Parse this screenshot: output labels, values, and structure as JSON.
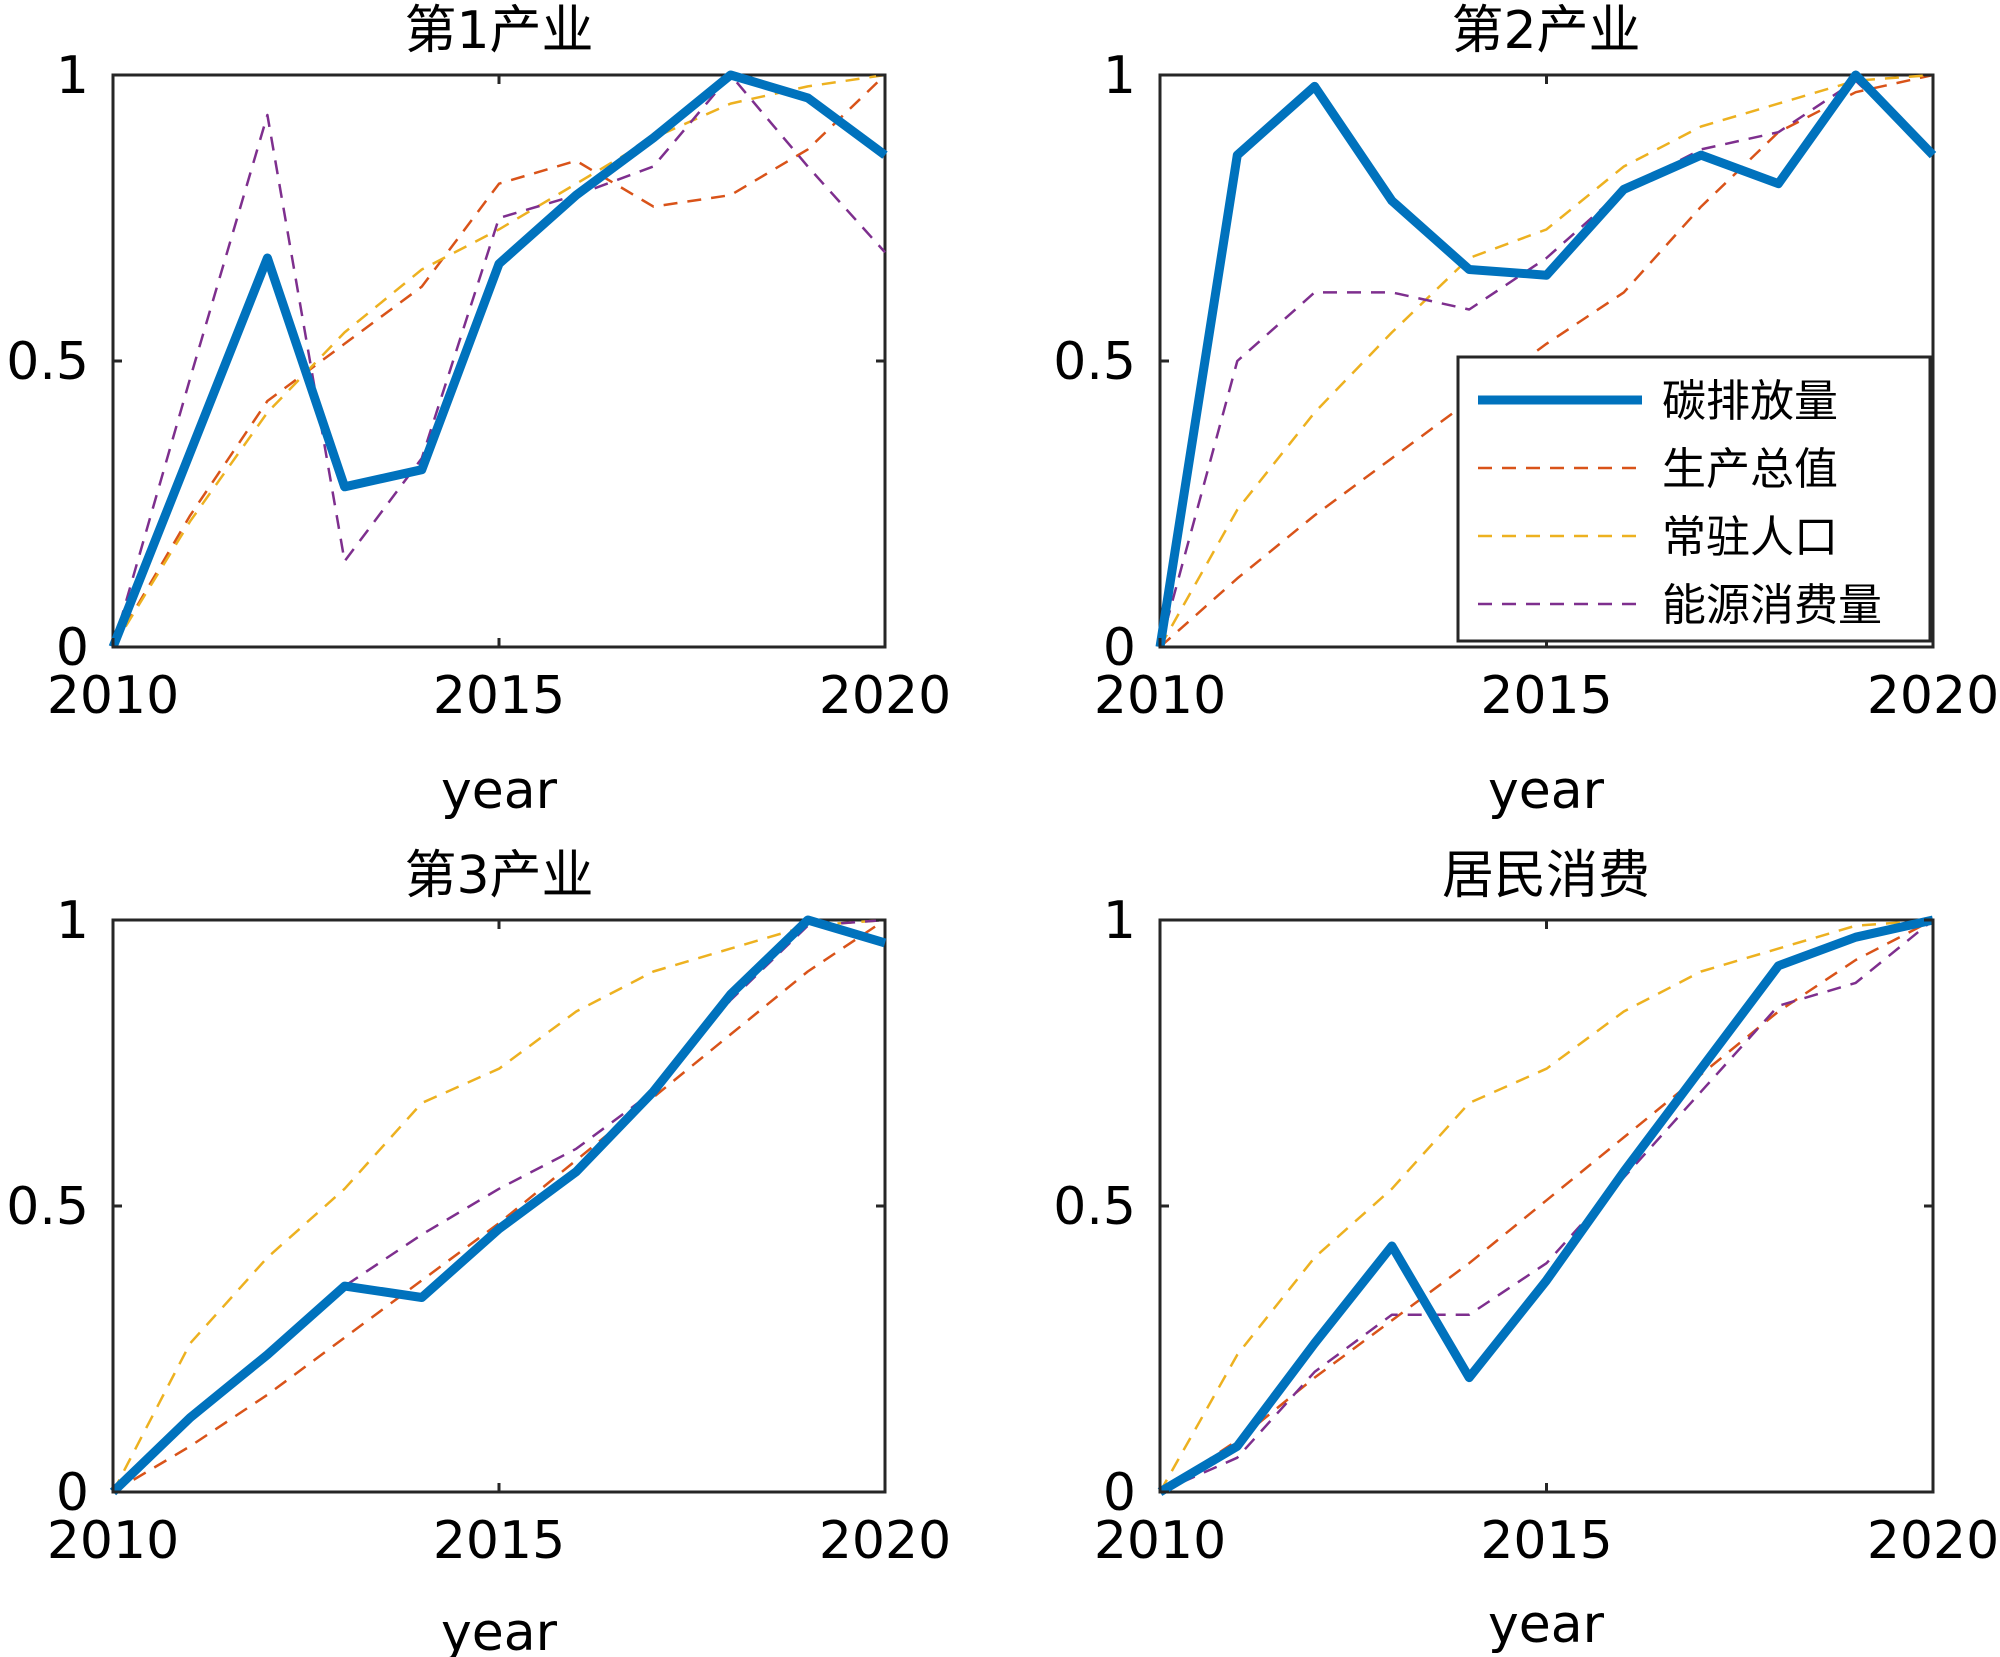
{
  "colors": {
    "碳排放量": "#0072BD",
    "生产总值": "#D95319",
    "常驻人口": "#EDB120",
    "能源消费量": "#7E2F8E"
  },
  "legend": {
    "location": "lower-right of 第2产业 panel",
    "items": [
      "碳排放量",
      "生产总值",
      "常驻人口",
      "能源消费量"
    ]
  },
  "chart_data": [
    {
      "type": "line",
      "title": "第1产业",
      "xlabel": "year",
      "ylabel": "",
      "xlim": [
        2010,
        2020
      ],
      "ylim": [
        0,
        1
      ],
      "xticks": [
        "2010",
        "2015",
        "2020"
      ],
      "yticks": [
        "0",
        "0.5",
        "1"
      ],
      "x": [
        2010,
        2011,
        2012,
        2013,
        2014,
        2015,
        2016,
        2017,
        2018,
        2019,
        2020
      ],
      "series": [
        {
          "name": "碳排放量",
          "style": "solid",
          "values": [
            0,
            0.34,
            0.68,
            0.28,
            0.31,
            0.67,
            0.79,
            0.89,
            1.0,
            0.96,
            0.86
          ]
        },
        {
          "name": "生产总值",
          "style": "dashed",
          "values": [
            0,
            0.23,
            0.43,
            0.53,
            0.63,
            0.81,
            0.85,
            0.77,
            0.79,
            0.87,
            1.0
          ]
        },
        {
          "name": "常驻人口",
          "style": "dashed",
          "values": [
            0,
            0.22,
            0.41,
            0.55,
            0.66,
            0.73,
            0.81,
            0.89,
            0.95,
            0.98,
            1.0
          ]
        },
        {
          "name": "能源消费量",
          "style": "dashed",
          "values": [
            0,
            0.47,
            0.93,
            0.15,
            0.33,
            0.75,
            0.79,
            0.84,
            1.0,
            0.84,
            0.69
          ]
        }
      ]
    },
    {
      "type": "line",
      "title": "第2产业",
      "xlabel": "year",
      "ylabel": "",
      "xlim": [
        2010,
        2020
      ],
      "ylim": [
        0,
        1
      ],
      "xticks": [
        "2010",
        "2015",
        "2020"
      ],
      "yticks": [
        "0",
        "0.5",
        "1"
      ],
      "x": [
        2010,
        2011,
        2012,
        2013,
        2014,
        2015,
        2016,
        2017,
        2018,
        2019,
        2020
      ],
      "series": [
        {
          "name": "碳排放量",
          "style": "solid",
          "values": [
            0,
            0.86,
            0.98,
            0.78,
            0.66,
            0.65,
            0.8,
            0.86,
            0.81,
            1.0,
            0.86
          ]
        },
        {
          "name": "生产总值",
          "style": "dashed",
          "values": [
            0,
            0.12,
            0.23,
            0.33,
            0.43,
            0.53,
            0.62,
            0.77,
            0.9,
            0.97,
            1.0
          ]
        },
        {
          "name": "常驻人口",
          "style": "dashed",
          "values": [
            0,
            0.24,
            0.41,
            0.55,
            0.68,
            0.73,
            0.84,
            0.91,
            0.95,
            0.99,
            1.0
          ]
        },
        {
          "name": "能源消费量",
          "style": "dashed",
          "values": [
            0,
            0.5,
            0.62,
            0.62,
            0.59,
            0.68,
            0.8,
            0.87,
            0.9,
            0.99,
            0.86
          ]
        }
      ]
    },
    {
      "type": "line",
      "title": "第3产业",
      "xlabel": "year",
      "ylabel": "",
      "xlim": [
        2010,
        2020
      ],
      "ylim": [
        0,
        1
      ],
      "xticks": [
        "2010",
        "2015",
        "2020"
      ],
      "yticks": [
        "0",
        "0.5",
        "1"
      ],
      "x": [
        2010,
        2011,
        2012,
        2013,
        2014,
        2015,
        2016,
        2017,
        2018,
        2019,
        2020
      ],
      "series": [
        {
          "name": "碳排放量",
          "style": "solid",
          "values": [
            0,
            0.13,
            0.24,
            0.36,
            0.34,
            0.46,
            0.56,
            0.7,
            0.87,
            1.0,
            0.96
          ]
        },
        {
          "name": "生产总值",
          "style": "dashed",
          "values": [
            0,
            0.08,
            0.17,
            0.27,
            0.37,
            0.47,
            0.58,
            0.69,
            0.8,
            0.91,
            1.0
          ]
        },
        {
          "name": "常驻人口",
          "style": "dashed",
          "values": [
            0,
            0.26,
            0.41,
            0.53,
            0.68,
            0.74,
            0.84,
            0.91,
            0.95,
            0.99,
            1.0
          ]
        },
        {
          "name": "能源消费量",
          "style": "dashed",
          "values": [
            0,
            0.13,
            0.24,
            0.36,
            0.45,
            0.53,
            0.6,
            0.7,
            0.86,
            0.99,
            1.0
          ]
        }
      ]
    },
    {
      "type": "line",
      "title": "居民消费",
      "xlabel": "year",
      "ylabel": "",
      "xlim": [
        2010,
        2020
      ],
      "ylim": [
        0,
        1
      ],
      "xticks": [
        "2010",
        "2015",
        "2020"
      ],
      "yticks": [
        "0",
        "0.5",
        "1"
      ],
      "x": [
        2010,
        2011,
        2012,
        2013,
        2014,
        2015,
        2016,
        2017,
        2018,
        2019,
        2020
      ],
      "series": [
        {
          "name": "碳排放量",
          "style": "solid",
          "values": [
            0,
            0.08,
            0.26,
            0.43,
            0.2,
            0.37,
            0.56,
            0.74,
            0.92,
            0.97,
            1.0
          ]
        },
        {
          "name": "生产总值",
          "style": "dashed",
          "values": [
            0,
            0.09,
            0.2,
            0.3,
            0.4,
            0.51,
            0.62,
            0.73,
            0.84,
            0.93,
            1.0
          ]
        },
        {
          "name": "常驻人口",
          "style": "dashed",
          "values": [
            0,
            0.24,
            0.41,
            0.53,
            0.68,
            0.74,
            0.84,
            0.91,
            0.95,
            0.99,
            1.0
          ]
        },
        {
          "name": "能源消费量",
          "style": "dashed",
          "values": [
            0,
            0.06,
            0.21,
            0.31,
            0.31,
            0.4,
            0.55,
            0.7,
            0.85,
            0.89,
            1.0
          ]
        }
      ]
    }
  ]
}
